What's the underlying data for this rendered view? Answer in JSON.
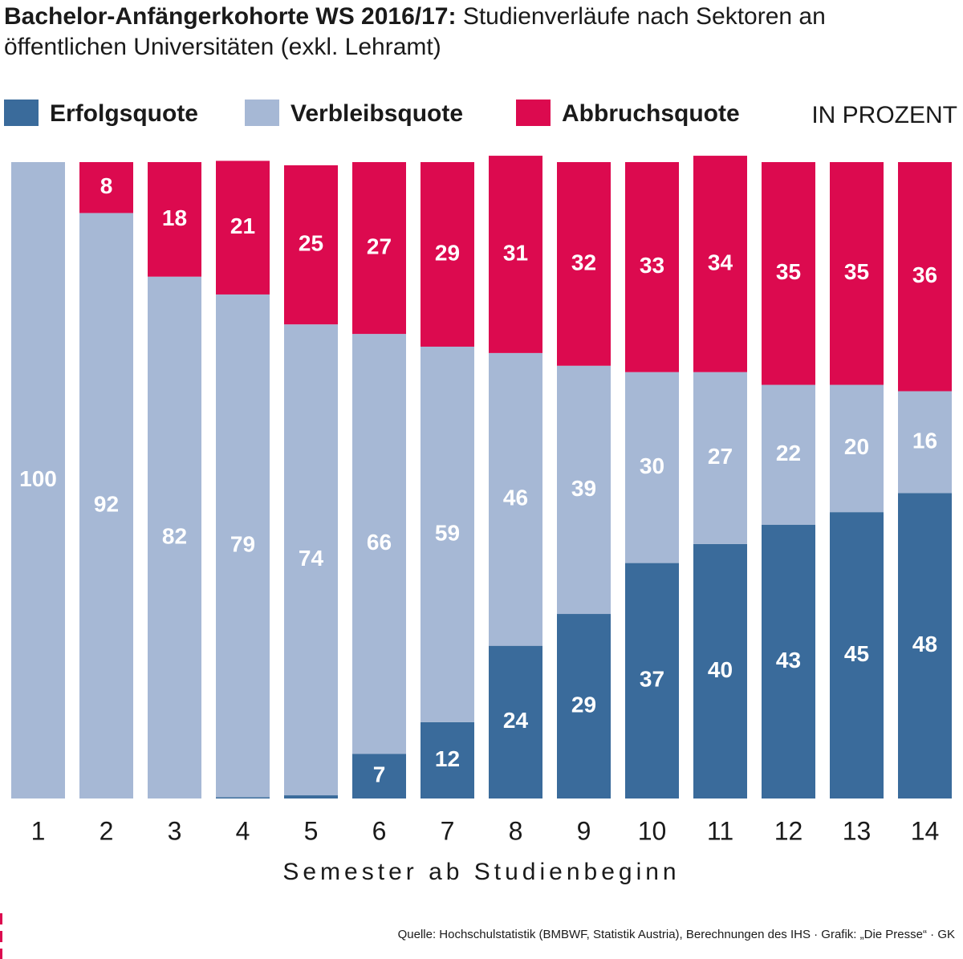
{
  "chart_data": {
    "type": "stacked-bar",
    "title": "Bachelor-Anfängerkohorte WS 2016/17:",
    "subtitle": "Studienverläufe nach Sektoren an öffentlichen Universitäten (exkl. Lehramt)",
    "unit_label": "IN PROZENT",
    "x_label": "Semester ab Studienbeginn",
    "source": "Quelle: Hochschulstatistik (BMBWF, Statistik Austria), Berechnungen des IHS · Grafik: „Die Presse“ · GK",
    "categories": [
      "1",
      "2",
      "3",
      "4",
      "5",
      "6",
      "7",
      "8",
      "9",
      "10",
      "11",
      "12",
      "13",
      "14"
    ],
    "series": [
      {
        "name": "Erfolgsquote",
        "color": "#3a6b9b",
        "values": [
          0,
          0,
          0,
          0.2,
          0.5,
          7,
          12,
          24,
          29,
          37,
          40,
          43,
          45,
          48
        ]
      },
      {
        "name": "Verbleibsquote",
        "color": "#a6b8d5",
        "values": [
          100,
          92,
          82,
          79,
          74,
          66,
          59,
          46,
          39,
          30,
          27,
          22,
          20,
          16
        ]
      },
      {
        "name": "Abbruchsquote",
        "color": "#dc0a4f",
        "values": [
          0,
          8,
          18,
          21,
          25,
          27,
          29,
          31,
          32,
          33,
          34,
          35,
          35,
          36
        ]
      }
    ],
    "ylim": [
      0,
      100
    ]
  }
}
